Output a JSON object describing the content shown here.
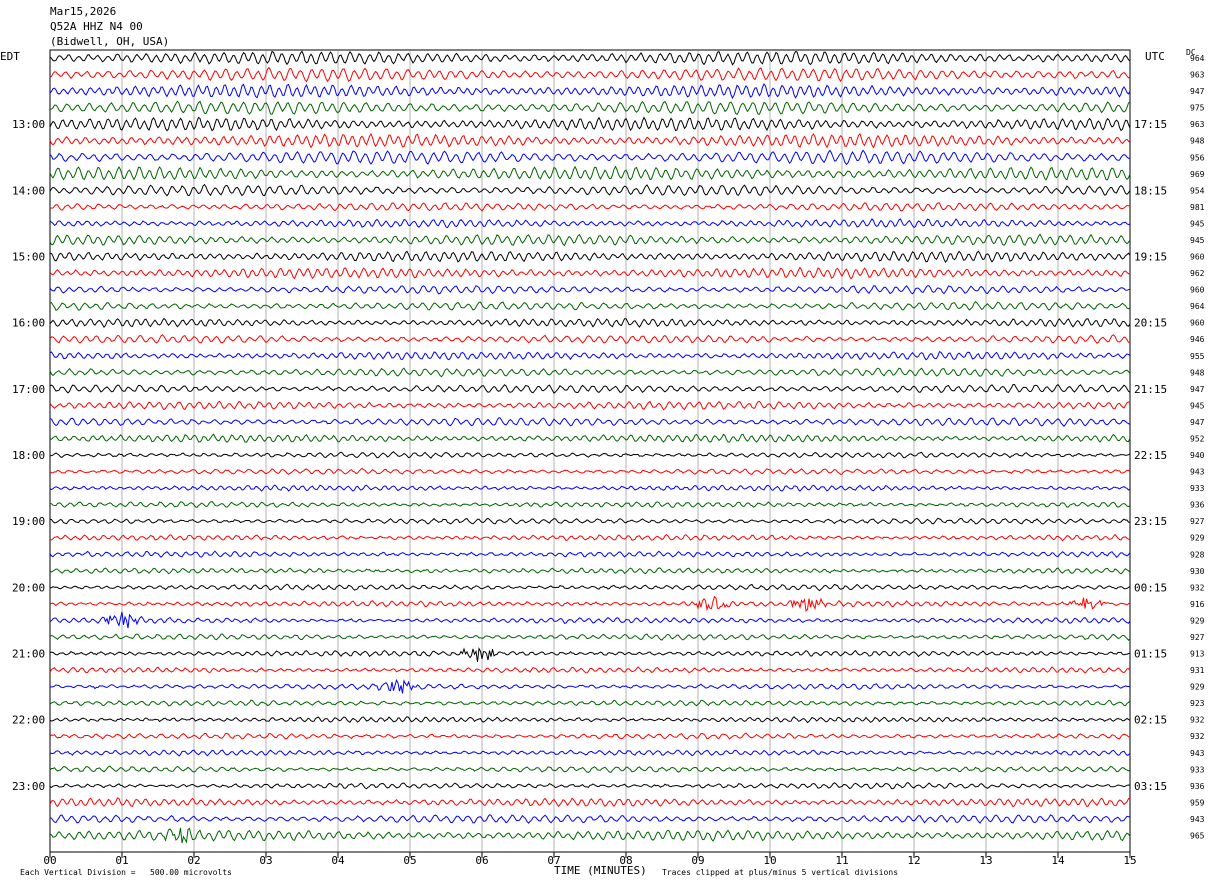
{
  "header": {
    "date": "Mar15,2026",
    "station": "Q52A HHZ N4 00",
    "location": "(Bidwell, OH, USA)"
  },
  "left_axis_label": "EDT",
  "right_axis_label": "UTC",
  "dc_label": "DC",
  "footer": {
    "scale_note": "Each Vertical Division =   500.00 microvolts",
    "x_axis_title": "TIME (MINUTES)",
    "clip_note": "Traces clipped at plus/minus 5 vertical divisions"
  },
  "colors": {
    "trace_cycle": [
      "#000000",
      "#ff0000",
      "#0000ff",
      "#006400"
    ],
    "grid": "#808080"
  },
  "chart_data": {
    "type": "line",
    "title": "Mar15,2026 Q52A HHZ N4 00 (Bidwell, OH, USA)",
    "xlabel": "TIME (MINUTES)",
    "ylabel": "",
    "xlim": [
      0,
      15
    ],
    "x_ticks": [
      "00",
      "01",
      "02",
      "03",
      "04",
      "05",
      "06",
      "07",
      "08",
      "09",
      "10",
      "11",
      "12",
      "13",
      "14",
      "15"
    ],
    "trace_count": 48,
    "left_time_labels": [
      "13:00",
      "14:00",
      "15:00",
      "16:00",
      "17:00",
      "18:00",
      "19:00",
      "20:00",
      "21:00",
      "22:00",
      "23:00"
    ],
    "right_time_labels": [
      "17:15",
      "18:15",
      "19:15",
      "20:15",
      "21:15",
      "22:15",
      "23:15",
      "00:15",
      "01:15",
      "02:15",
      "03:15"
    ],
    "dc_offsets": [
      964,
      963,
      947,
      975,
      963,
      948,
      956,
      969,
      954,
      981,
      945,
      945,
      960,
      962,
      960,
      964,
      960,
      946,
      955,
      948,
      947,
      945,
      947,
      952,
      940,
      943,
      933,
      936,
      927,
      929,
      928,
      930,
      932,
      916,
      929,
      927,
      913,
      931,
      929,
      923,
      932,
      932,
      943,
      933,
      936,
      959,
      943,
      965
    ],
    "amplitude_levels": [
      5,
      5,
      5,
      5,
      5,
      5,
      5,
      5,
      4,
      3,
      3,
      4,
      4,
      4,
      3,
      3,
      3,
      3,
      3,
      3,
      3,
      3,
      3,
      3,
      2,
      2,
      2,
      2,
      2,
      2,
      2,
      2,
      2,
      2,
      2,
      2,
      2,
      2,
      2,
      2,
      2,
      2,
      2,
      2,
      2,
      3,
      3,
      4
    ],
    "events": [
      {
        "trace": 33,
        "minute": 9.2,
        "label": "burst"
      },
      {
        "trace": 33,
        "minute": 10.5,
        "label": "burst"
      },
      {
        "trace": 33,
        "minute": 14.4,
        "label": "burst"
      },
      {
        "trace": 34,
        "minute": 1.0,
        "label": "burst"
      },
      {
        "trace": 36,
        "minute": 6.0,
        "label": "spike"
      },
      {
        "trace": 38,
        "minute": 4.8,
        "label": "burst"
      },
      {
        "trace": 47,
        "minute": 1.8,
        "label": "burst"
      }
    ]
  }
}
